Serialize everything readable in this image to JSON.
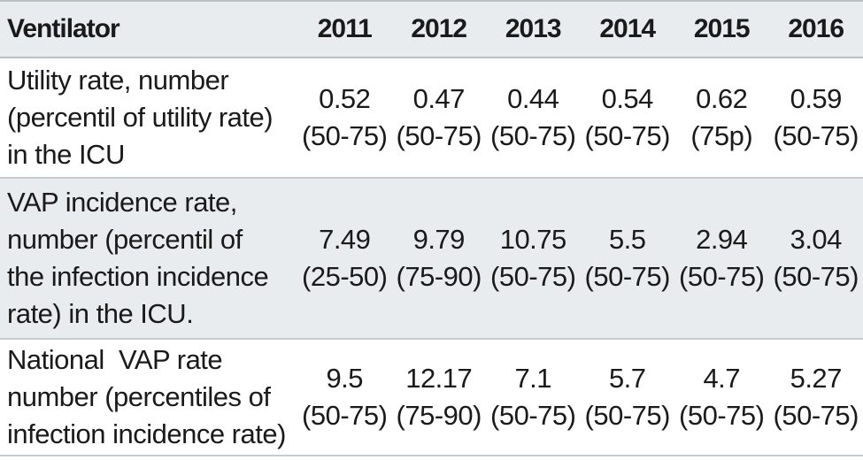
{
  "header": {
    "label": "Ventilator",
    "years": [
      "2011",
      "2012",
      "2013",
      "2014",
      "2015",
      "2016"
    ]
  },
  "rows": [
    {
      "label_lines": [
        "Utility rate, number",
        "(percentil of utility rate)",
        "in the ICU"
      ],
      "cells": [
        {
          "value": "0.52",
          "range": "(50-75)"
        },
        {
          "value": "0.47",
          "range": "(50-75)"
        },
        {
          "value": "0.44",
          "range": "(50-75)"
        },
        {
          "value": "0.54",
          "range": "(50-75)"
        },
        {
          "value": "0.62",
          "range": "(75p)"
        },
        {
          "value": "0.59",
          "range": "(50-75)"
        }
      ]
    },
    {
      "label_lines": [
        "VAP incidence rate,",
        "number (percentil of",
        "the infection incidence",
        "rate) in the ICU."
      ],
      "cells": [
        {
          "value": "7.49",
          "range": "(25-50)"
        },
        {
          "value": "9.79",
          "range": "(75-90)"
        },
        {
          "value": "10.75",
          "range": "(50-75)"
        },
        {
          "value": "5.5",
          "range": "(50-75)"
        },
        {
          "value": "2.94",
          "range": "(50-75)"
        },
        {
          "value": "3.04",
          "range": "(50-75)"
        }
      ]
    },
    {
      "label_lines": [
        "National  VAP rate",
        "number (percentiles of",
        "infection incidence rate)"
      ],
      "cells": [
        {
          "value": "9.5",
          "range": "(50-75)"
        },
        {
          "value": "12.17",
          "range": "(75-90)"
        },
        {
          "value": "7.1",
          "range": "(50-75)"
        },
        {
          "value": "5.7",
          "range": "(50-75)"
        },
        {
          "value": "4.7",
          "range": "(50-75)"
        },
        {
          "value": "5.27",
          "range": "(50-75)"
        }
      ]
    }
  ]
}
